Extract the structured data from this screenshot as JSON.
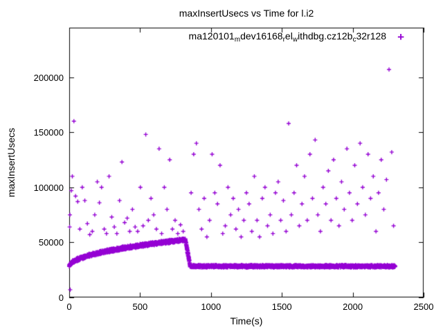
{
  "chart_data": {
    "type": "scatter",
    "title": "maxInsertUsecs vs Time for l.i2",
    "xlabel": "Time(s)",
    "ylabel": "maxInsertUsecs",
    "xlim": [
      0,
      2500
    ],
    "ylim": [
      0,
      245000
    ],
    "xticks": [
      0,
      500,
      1000,
      1500,
      2000,
      2500
    ],
    "yticks": [
      0,
      50000,
      100000,
      150000,
      200000
    ],
    "grid": false,
    "legend_position": "top-inside-right",
    "axis_color": "#000000",
    "series": [
      {
        "name": "ma120101_mdev16168_rel_withdbg.cz12b_c32r128",
        "label_segments": [
          {
            "t": "ma120101"
          },
          {
            "t": "m",
            "sub": true
          },
          {
            "t": "dev16168"
          },
          {
            "t": "r",
            "sub": true
          },
          {
            "t": "el"
          },
          {
            "t": "w",
            "sub": true
          },
          {
            "t": "ithdbg.cz12b"
          },
          {
            "t": "c",
            "sub": true
          },
          {
            "t": "32r128"
          }
        ],
        "marker": "+",
        "color": "#9400d3",
        "dense_bands": [
          {
            "x_start": 0,
            "x_end": 820,
            "y_start": 28000,
            "y_end": 52500,
            "shape": "sqrt",
            "jitter": 1700,
            "points": 1500
          },
          {
            "x_start": 820,
            "x_end": 852,
            "y_start": 52000,
            "y_end": 29500,
            "shape": "linear",
            "jitter": 2500,
            "points": 60
          },
          {
            "x_start": 852,
            "x_end": 2300,
            "y_start": 28300,
            "y_end": 28300,
            "shape": "flat",
            "jitter": 1300,
            "points": 2200
          }
        ],
        "outliers": [
          [
            3,
            64000
          ],
          [
            5,
            75000
          ],
          [
            7,
            7000
          ],
          [
            15,
            97000
          ],
          [
            22,
            110000
          ],
          [
            33,
            160000
          ],
          [
            45,
            92000
          ],
          [
            60,
            87000
          ],
          [
            75,
            62000
          ],
          [
            92,
            100000
          ],
          [
            110,
            88000
          ],
          [
            128,
            67000
          ],
          [
            145,
            57000
          ],
          [
            163,
            60000
          ],
          [
            180,
            75000
          ],
          [
            198,
            105000
          ],
          [
            213,
            86000
          ],
          [
            228,
            100000
          ],
          [
            247,
            62000
          ],
          [
            263,
            58000
          ],
          [
            281,
            110000
          ],
          [
            300,
            73000
          ],
          [
            318,
            64000
          ],
          [
            336,
            58000
          ],
          [
            355,
            88000
          ],
          [
            372,
            123000
          ],
          [
            391,
            68000
          ],
          [
            409,
            72000
          ],
          [
            427,
            60000
          ],
          [
            446,
            80000
          ],
          [
            465,
            64000
          ],
          [
            483,
            60000
          ],
          [
            502,
            100000
          ],
          [
            521,
            65000
          ],
          [
            540,
            148000
          ],
          [
            558,
            70000
          ],
          [
            577,
            90000
          ],
          [
            596,
            75000
          ],
          [
            615,
            62000
          ],
          [
            634,
            135000
          ],
          [
            652,
            58000
          ],
          [
            671,
            100000
          ],
          [
            690,
            80000
          ],
          [
            709,
            125000
          ],
          [
            728,
            62000
          ],
          [
            747,
            70000
          ],
          [
            766,
            58000
          ],
          [
            785,
            66000
          ],
          [
            804,
            60000
          ],
          [
            860,
            95000
          ],
          [
            878,
            130000
          ],
          [
            897,
            140000
          ],
          [
            915,
            80000
          ],
          [
            934,
            62000
          ],
          [
            952,
            90000
          ],
          [
            971,
            55000
          ],
          [
            990,
            70000
          ],
          [
            1008,
            130000
          ],
          [
            1027,
            95000
          ],
          [
            1046,
            85000
          ],
          [
            1064,
            120000
          ],
          [
            1083,
            58000
          ],
          [
            1101,
            65000
          ],
          [
            1120,
            100000
          ],
          [
            1139,
            75000
          ],
          [
            1157,
            90000
          ],
          [
            1176,
            62000
          ],
          [
            1194,
            80000
          ],
          [
            1213,
            55000
          ],
          [
            1232,
            70000
          ],
          [
            1250,
            95000
          ],
          [
            1269,
            85000
          ],
          [
            1288,
            60000
          ],
          [
            1306,
            110000
          ],
          [
            1325,
            70000
          ],
          [
            1343,
            55000
          ],
          [
            1362,
            90000
          ],
          [
            1381,
            100000
          ],
          [
            1399,
            65000
          ],
          [
            1418,
            75000
          ],
          [
            1437,
            58000
          ],
          [
            1455,
            95000
          ],
          [
            1474,
            105000
          ],
          [
            1492,
            70000
          ],
          [
            1511,
            88000
          ],
          [
            1530,
            60000
          ],
          [
            1548,
            158000
          ],
          [
            1567,
            75000
          ],
          [
            1586,
            95000
          ],
          [
            1604,
            120000
          ],
          [
            1623,
            65000
          ],
          [
            1642,
            85000
          ],
          [
            1660,
            110000
          ],
          [
            1679,
            70000
          ],
          [
            1698,
            130000
          ],
          [
            1716,
            90000
          ],
          [
            1735,
            143000
          ],
          [
            1754,
            75000
          ],
          [
            1772,
            60000
          ],
          [
            1791,
            100000
          ],
          [
            1810,
            85000
          ],
          [
            1828,
            115000
          ],
          [
            1847,
            70000
          ],
          [
            1865,
            125000
          ],
          [
            1884,
            90000
          ],
          [
            1903,
            65000
          ],
          [
            1921,
            105000
          ],
          [
            1940,
            80000
          ],
          [
            1959,
            135000
          ],
          [
            1977,
            95000
          ],
          [
            1996,
            70000
          ],
          [
            2014,
            120000
          ],
          [
            2033,
            85000
          ],
          [
            2052,
            140000
          ],
          [
            2070,
            100000
          ],
          [
            2089,
            75000
          ],
          [
            2108,
            130000
          ],
          [
            2126,
            90000
          ],
          [
            2145,
            110000
          ],
          [
            2164,
            60000
          ],
          [
            2182,
            95000
          ],
          [
            2201,
            125000
          ],
          [
            2219,
            80000
          ],
          [
            2238,
            107000
          ],
          [
            2256,
            207000
          ],
          [
            2275,
            132000
          ],
          [
            2288,
            65000
          ]
        ]
      }
    ]
  }
}
